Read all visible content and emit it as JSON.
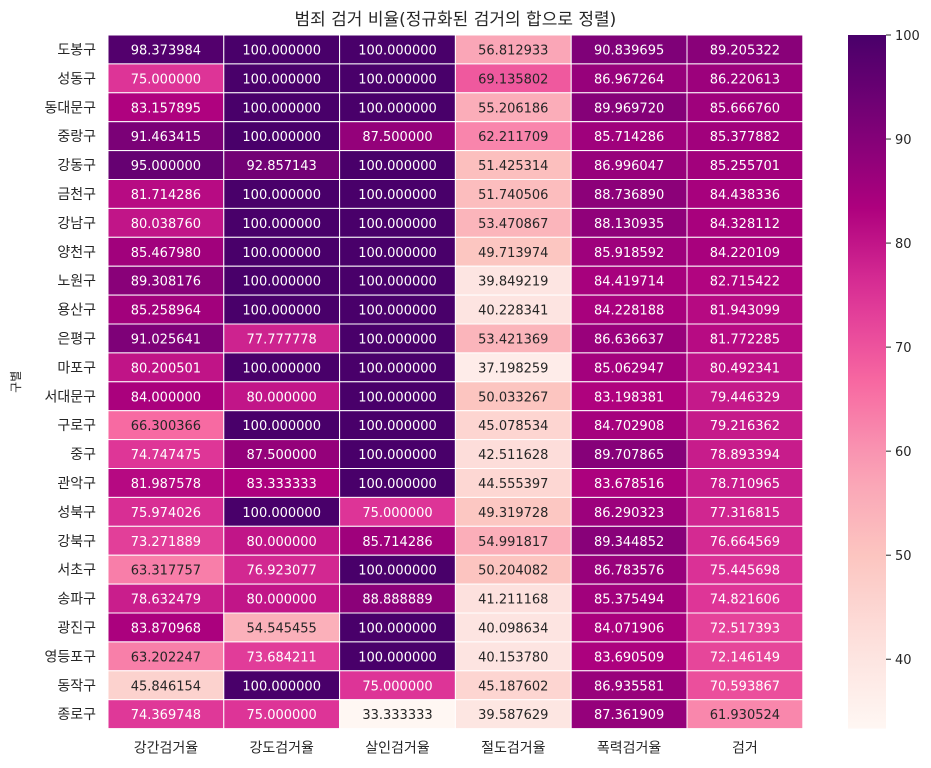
{
  "chart_data": {
    "type": "heatmap",
    "title": "범죄 검거 비율(정규화된 검거의 합으로 정렬)",
    "xlabel": "",
    "ylabel": "구별",
    "columns": [
      "강간검거율",
      "강도검거율",
      "살인검거율",
      "절도검거율",
      "폭력검거율",
      "검거"
    ],
    "rows": [
      "도봉구",
      "성동구",
      "동대문구",
      "중랑구",
      "강동구",
      "금천구",
      "강남구",
      "양천구",
      "노원구",
      "용산구",
      "은평구",
      "마포구",
      "서대문구",
      "구로구",
      "중구",
      "관악구",
      "성북구",
      "강북구",
      "서초구",
      "송파구",
      "광진구",
      "영등포구",
      "동작구",
      "종로구"
    ],
    "values": [
      [
        98.373984,
        100.0,
        100.0,
        56.812933,
        90.839695,
        89.205322
      ],
      [
        75.0,
        100.0,
        100.0,
        69.135802,
        86.967264,
        86.220613
      ],
      [
        83.157895,
        100.0,
        100.0,
        55.206186,
        89.96972,
        85.66676
      ],
      [
        91.463415,
        100.0,
        87.5,
        62.211709,
        85.714286,
        85.377882
      ],
      [
        95.0,
        92.857143,
        100.0,
        51.425314,
        86.996047,
        85.255701
      ],
      [
        81.714286,
        100.0,
        100.0,
        51.740506,
        88.73689,
        84.438336
      ],
      [
        80.03876,
        100.0,
        100.0,
        53.470867,
        88.130935,
        84.328112
      ],
      [
        85.46798,
        100.0,
        100.0,
        49.713974,
        85.918592,
        84.220109
      ],
      [
        89.308176,
        100.0,
        100.0,
        39.849219,
        84.419714,
        82.715422
      ],
      [
        85.258964,
        100.0,
        100.0,
        40.228341,
        84.228188,
        81.943099
      ],
      [
        91.025641,
        77.777778,
        100.0,
        53.421369,
        86.636637,
        81.772285
      ],
      [
        80.200501,
        100.0,
        100.0,
        37.198259,
        85.062947,
        80.492341
      ],
      [
        84.0,
        80.0,
        100.0,
        50.033267,
        83.198381,
        79.446329
      ],
      [
        66.300366,
        100.0,
        100.0,
        45.078534,
        84.702908,
        79.216362
      ],
      [
        74.747475,
        87.5,
        100.0,
        42.511628,
        89.707865,
        78.893394
      ],
      [
        81.987578,
        83.333333,
        100.0,
        44.555397,
        83.678516,
        78.710965
      ],
      [
        75.974026,
        100.0,
        75.0,
        49.319728,
        86.290323,
        77.316815
      ],
      [
        73.271889,
        80.0,
        85.714286,
        54.991817,
        89.344852,
        76.664569
      ],
      [
        63.317757,
        76.923077,
        100.0,
        50.204082,
        86.783576,
        75.445698
      ],
      [
        78.632479,
        80.0,
        88.888889,
        41.211168,
        85.375494,
        74.821606
      ],
      [
        83.870968,
        54.545455,
        100.0,
        40.098634,
        84.071906,
        72.517393
      ],
      [
        63.202247,
        73.684211,
        100.0,
        40.15378,
        83.690509,
        72.146149
      ],
      [
        45.846154,
        100.0,
        75.0,
        45.187602,
        86.935581,
        70.593867
      ],
      [
        74.369748,
        75.0,
        33.333333,
        39.587629,
        87.361909,
        61.930524
      ]
    ],
    "value_format": "6 decimals",
    "colormap": "RdPu",
    "vmin": 33.333333,
    "vmax": 100.0,
    "colorbar_ticks": [
      40,
      50,
      60,
      70,
      80,
      90,
      100
    ],
    "cell_border_color": "#ffffff",
    "grid": false,
    "legend": "colorbar right"
  }
}
